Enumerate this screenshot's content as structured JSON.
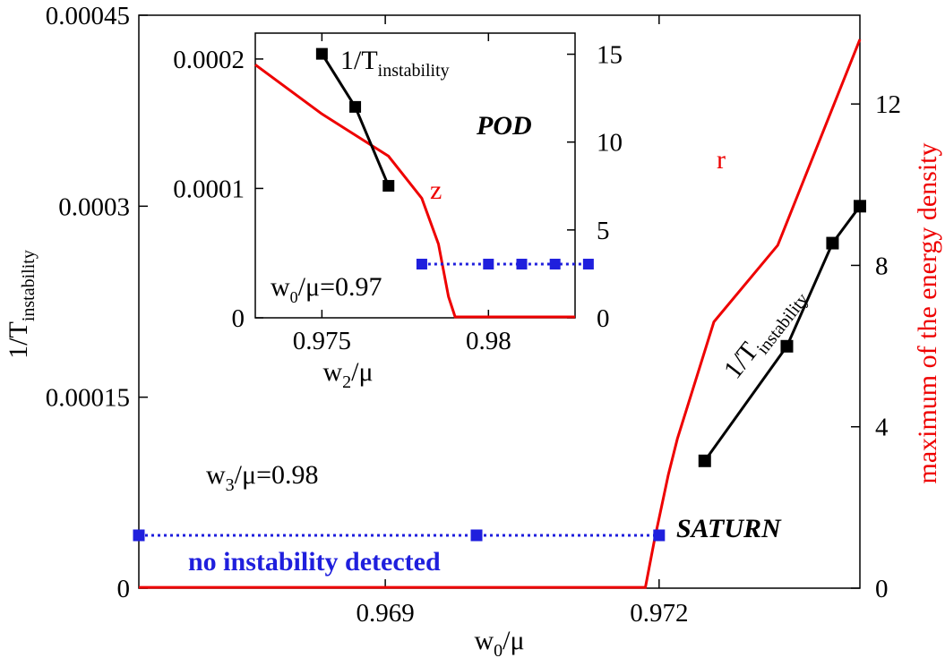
{
  "chart_data": [
    {
      "type": "line",
      "role": "main",
      "xlabel": {
        "base": "w",
        "sub": "0",
        "rest": "/μ"
      },
      "ylabel": {
        "base": "1/T",
        "sub": "instability"
      },
      "y2label": "maximum of the energy density",
      "xlim": [
        0.9663,
        0.9742
      ],
      "ylim": [
        0,
        0.00045
      ],
      "y2lim": [
        0,
        14.2
      ],
      "x_ticks": [
        "0.969",
        "0.972"
      ],
      "x_tick_values": [
        0.969,
        0.972
      ],
      "y_ticks": [
        "0",
        "0.00015",
        "0.0003",
        "0.00045"
      ],
      "y_tick_values": [
        0,
        0.00015,
        0.0003,
        0.00045
      ],
      "y2_ticks": [
        "0",
        "4",
        "8",
        "12"
      ],
      "y2_tick_values": [
        0,
        4,
        8,
        12
      ],
      "series": [
        {
          "name": "1/T_instability",
          "axis": "y",
          "color": "#000000",
          "marker": "square",
          "x": [
            0.9725,
            0.9734,
            0.9739,
            0.9742
          ],
          "y": [
            0.0001,
            0.00019,
            0.000271,
            0.0003
          ]
        },
        {
          "name": "r",
          "axis": "y2",
          "color": "#ee0000",
          "marker": "none",
          "x": [
            0.9663,
            0.97185,
            0.97195,
            0.9721,
            0.9722,
            0.9726,
            0.9733,
            0.9742
          ],
          "y": [
            0.02,
            0.02,
            1.2,
            2.8,
            3.7,
            6.6,
            8.5,
            13.6
          ]
        },
        {
          "name": "no instability detected",
          "axis": "y",
          "color": "#1f1fdd",
          "marker": "square",
          "style": "dotted",
          "x": [
            0.9663,
            0.97,
            0.972
          ],
          "y": [
            4.15e-05,
            4.15e-05,
            4.15e-05
          ]
        }
      ],
      "annotations": {
        "w3": {
          "base": "w",
          "sub": "3",
          "rest": "/μ=0.98"
        },
        "no_instability": "no instability detected",
        "saturn": "SATURN",
        "r_label": "r",
        "curve_label": {
          "base": "1/T",
          "sub": "instability"
        }
      }
    },
    {
      "type": "line",
      "role": "inset",
      "xlabel": {
        "base": "w",
        "sub": "2",
        "rest": "/μ"
      },
      "xlim": [
        0.973,
        0.9826
      ],
      "ylim": [
        0,
        0.00022
      ],
      "y2lim": [
        0,
        16.2
      ],
      "x_ticks": [
        "0.975",
        "0.98"
      ],
      "x_tick_values": [
        0.975,
        0.98
      ],
      "y_ticks": [
        "0",
        "0.0001",
        "0.0002"
      ],
      "y_tick_values": [
        0,
        0.0001,
        0.0002
      ],
      "y2_ticks": [
        "0",
        "5",
        "10",
        "15"
      ],
      "y2_tick_values": [
        0,
        5,
        10,
        15
      ],
      "series": [
        {
          "name": "1/T_instability",
          "axis": "y",
          "color": "#000000",
          "marker": "square",
          "x": [
            0.975,
            0.976,
            0.977
          ],
          "y": [
            0.000204,
            0.000163,
            0.000102
          ]
        },
        {
          "name": "z",
          "axis": "y2",
          "color": "#ee0000",
          "marker": "none",
          "x": [
            0.973,
            0.975,
            0.977,
            0.978,
            0.9785,
            0.9788,
            0.979,
            0.9826
          ],
          "y": [
            14.4,
            11.6,
            9.2,
            6.8,
            4.2,
            1.2,
            0.05,
            0.05
          ]
        },
        {
          "name": "no instability",
          "axis": "y",
          "color": "#1f1fdd",
          "marker": "square",
          "style": "dotted",
          "x": [
            0.978,
            0.98,
            0.981,
            0.982,
            0.983
          ],
          "y": [
            4.15e-05,
            4.15e-05,
            4.15e-05,
            4.15e-05,
            4.15e-05
          ]
        }
      ],
      "annotations": {
        "legend_label": {
          "base": "1/T",
          "sub": "instability"
        },
        "pod": "POD",
        "z_label": "z",
        "w0": {
          "base": "w",
          "sub": "0",
          "rest": "/μ=0.97"
        }
      }
    }
  ]
}
